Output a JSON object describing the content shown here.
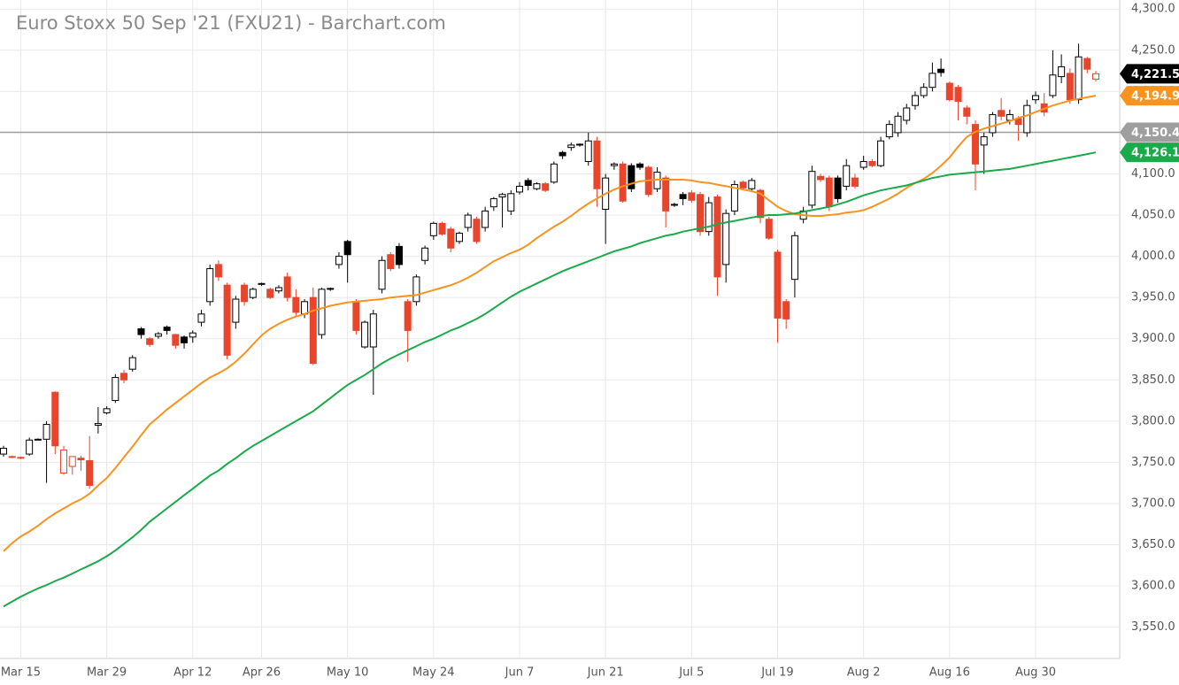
{
  "chart_data": {
    "type": "candlestick",
    "title": "Euro Stoxx 50 Sep '21 (FXU21) - Barchart.com",
    "categories": [
      null,
      null,
      "Mar 15",
      null,
      null,
      null,
      null,
      null,
      null,
      null,
      null,
      null,
      "Mar 29",
      null,
      null,
      null,
      null,
      null,
      null,
      null,
      null,
      null,
      "Apr 12",
      null,
      null,
      null,
      null,
      null,
      null,
      null,
      "Apr 26",
      null,
      null,
      null,
      null,
      null,
      null,
      null,
      null,
      null,
      "May 10",
      null,
      null,
      null,
      null,
      null,
      null,
      null,
      null,
      null,
      "May 24",
      null,
      null,
      null,
      null,
      null,
      null,
      null,
      null,
      null,
      "Jun 7",
      null,
      null,
      null,
      null,
      null,
      null,
      null,
      null,
      null,
      "Jun 21",
      null,
      null,
      null,
      null,
      null,
      null,
      null,
      null,
      null,
      "Jul 5",
      null,
      null,
      null,
      null,
      null,
      null,
      null,
      null,
      null,
      "Jul 19",
      null,
      null,
      null,
      null,
      null,
      null,
      null,
      null,
      null,
      "Aug 2",
      null,
      null,
      null,
      null,
      null,
      null,
      null,
      null,
      null,
      "Aug 16",
      null,
      null,
      null,
      null,
      null,
      null,
      null,
      null,
      null,
      "Aug 30",
      null,
      null,
      null,
      null,
      null,
      null,
      null
    ],
    "candles": {
      "up_color": "#000000",
      "down_color": "#e8452c",
      "last_label": "4,221.5",
      "open": [
        3760,
        3757,
        3756,
        3760,
        3778,
        3778,
        3835,
        3737,
        3745,
        3755,
        3752,
        3795,
        3810,
        3825,
        3858,
        3863,
        3912,
        3900,
        3903,
        3914,
        3905,
        3902,
        3902,
        3920,
        3945,
        3990,
        3965,
        3920,
        3965,
        3950,
        3966,
        3960,
        3958,
        3975,
        3950,
        3930,
        3950,
        3905,
        3960,
        3990,
        4018,
        3945,
        3890,
        3890,
        3960,
        4002,
        4012,
        3945,
        3945,
        3995,
        4025,
        4040,
        4033,
        4018,
        4035,
        4045,
        4035,
        4060,
        4072,
        4055,
        4078,
        4092,
        4082,
        4088,
        4090,
        4126,
        4132,
        4135,
        4115,
        4140,
        4057,
        4110,
        4112,
        4110,
        4112,
        4108,
        4082,
        4095,
        4062,
        4075,
        4077,
        4075,
        4030,
        4072,
        3990,
        4055,
        4090,
        4082,
        4080,
        4045,
        4005,
        3945,
        3972,
        4045,
        4062,
        4097,
        4095,
        4095,
        4085,
        4095,
        4108,
        4115,
        4110,
        4145,
        4150,
        4165,
        4183,
        4195,
        4205,
        4227,
        4210,
        4205,
        4180,
        4160,
        4135,
        4150,
        4177,
        4165,
        4167,
        4150,
        4190,
        4185,
        4195,
        4218,
        4222,
        4190,
        4240,
        4215
      ],
      "high": [
        3770,
        3758,
        3757,
        3780,
        3779,
        3800,
        3836,
        3770,
        3757,
        3758,
        3782,
        3817,
        3818,
        3857,
        3862,
        3880,
        3914,
        3902,
        3908,
        3916,
        3906,
        3904,
        3910,
        3935,
        3990,
        3995,
        3968,
        3952,
        3968,
        3962,
        3968,
        3962,
        3965,
        3980,
        3960,
        3948,
        3962,
        3962,
        3962,
        4005,
        4020,
        3948,
        3922,
        3935,
        4000,
        4005,
        4016,
        3948,
        3978,
        4013,
        4042,
        4042,
        4036,
        4030,
        4053,
        4048,
        4060,
        4072,
        4077,
        4080,
        4090,
        4095,
        4090,
        4090,
        4115,
        4128,
        4138,
        4137,
        4150,
        4145,
        4100,
        4114,
        4115,
        4113,
        4114,
        4110,
        4108,
        4098,
        4065,
        4078,
        4080,
        4078,
        4072,
        4075,
        4057,
        4092,
        4092,
        4095,
        4082,
        4048,
        4008,
        3948,
        4030,
        4060,
        4110,
        4100,
        4098,
        4098,
        4118,
        4100,
        4122,
        4118,
        4145,
        4165,
        4175,
        4185,
        4200,
        4210,
        4235,
        4240,
        4212,
        4208,
        4183,
        4165,
        4150,
        4175,
        4192,
        4178,
        4170,
        4190,
        4200,
        4198,
        4250,
        4245,
        4228,
        4258,
        4242,
        4225
      ],
      "low": [
        3757,
        3755,
        3754,
        3758,
        3777,
        3725,
        3760,
        3735,
        3735,
        3740,
        3718,
        3785,
        3808,
        3822,
        3846,
        3860,
        3900,
        3890,
        3900,
        3905,
        3888,
        3888,
        3895,
        3915,
        3940,
        3970,
        3875,
        3912,
        3940,
        3948,
        3964,
        3948,
        3955,
        3945,
        3928,
        3925,
        3868,
        3900,
        3958,
        3985,
        3968,
        3905,
        3888,
        3832,
        3955,
        3982,
        3985,
        3872,
        3940,
        3990,
        4020,
        4025,
        4005,
        4015,
        4030,
        4015,
        4030,
        4055,
        4035,
        4050,
        4075,
        4080,
        4080,
        4078,
        4088,
        4118,
        4128,
        4133,
        4110,
        4060,
        4015,
        4105,
        4065,
        4078,
        4105,
        4072,
        4078,
        4035,
        4060,
        4062,
        4065,
        4025,
        4025,
        3952,
        3968,
        4050,
        4080,
        4078,
        4040,
        4020,
        3895,
        3912,
        3950,
        4040,
        4058,
        4090,
        4055,
        4065,
        4080,
        4082,
        4105,
        4108,
        4108,
        4142,
        4145,
        4160,
        4178,
        4192,
        4200,
        4218,
        4188,
        4165,
        4160,
        4080,
        4100,
        4145,
        4165,
        4160,
        4140,
        4145,
        4185,
        4170,
        4192,
        4210,
        4185,
        4185,
        4222,
        4212
      ],
      "close": [
        3767,
        3756,
        3755,
        3777,
        3778,
        3796,
        3770,
        3765,
        3757,
        3753,
        3722,
        3797,
        3815,
        3853,
        3850,
        3877,
        3905,
        3893,
        3906,
        3910,
        3892,
        3895,
        3907,
        3930,
        3985,
        3975,
        3880,
        3948,
        3945,
        3960,
        3967,
        3950,
        3962,
        3950,
        3932,
        3945,
        3870,
        3960,
        3961,
        4000,
        4002,
        3910,
        3920,
        3930,
        3995,
        3985,
        3990,
        3910,
        3975,
        4010,
        4040,
        4027,
        4010,
        4028,
        4050,
        4018,
        4055,
        4070,
        4075,
        4076,
        4085,
        4086,
        4088,
        4080,
        4112,
        4122,
        4135,
        4136,
        4140,
        4082,
        4095,
        4112,
        4067,
        4082,
        4108,
        4075,
        4102,
        4055,
        4063,
        4070,
        4068,
        4030,
        4065,
        3975,
        4052,
        4087,
        4083,
        4092,
        4047,
        4022,
        3925,
        3924,
        4025,
        4055,
        4103,
        4093,
        4060,
        4070,
        4110,
        4085,
        4115,
        4110,
        4140,
        4160,
        4170,
        4180,
        4195,
        4205,
        4222,
        4223,
        4190,
        4188,
        4170,
        4112,
        4145,
        4172,
        4170,
        4172,
        4160,
        4183,
        4195,
        4175,
        4220,
        4230,
        4190,
        4242,
        4227,
        4221.5
      ]
    },
    "series": [
      {
        "color": "#f7931e",
        "last_label": "4,194.9",
        "values": [
          3642,
          3652,
          3660,
          3666,
          3673,
          3681,
          3688,
          3694,
          3700,
          3705,
          3712,
          3722,
          3731,
          3743,
          3756,
          3769,
          3783,
          3796,
          3805,
          3814,
          3822,
          3830,
          3838,
          3846,
          3853,
          3858,
          3864,
          3872,
          3882,
          3893,
          3904,
          3912,
          3918,
          3923,
          3927,
          3930,
          3934,
          3937,
          3940,
          3942,
          3944,
          3945,
          3946,
          3947,
          3948,
          3950,
          3951,
          3952,
          3953,
          3956,
          3959,
          3962,
          3965,
          3969,
          3974,
          3980,
          3987,
          3994,
          3999,
          4004,
          4008,
          4014,
          4022,
          4029,
          4036,
          4042,
          4049,
          4057,
          4064,
          4070,
          4076,
          4081,
          4085,
          4088,
          4091,
          4092,
          4093,
          4093,
          4093,
          4093,
          4092,
          4090,
          4089,
          4087,
          4085,
          4083,
          4081,
          4079,
          4076,
          4068,
          4060,
          4055,
          4051,
          4050,
          4049,
          4049,
          4050,
          4051,
          4053,
          4054,
          4056,
          4060,
          4065,
          4070,
          4076,
          4083,
          4089,
          4094,
          4101,
          4110,
          4120,
          4133,
          4145,
          4151,
          4155,
          4158,
          4161,
          4164,
          4168,
          4171,
          4175,
          4179,
          4183,
          4186,
          4189,
          4191,
          4193,
          4194.9
        ]
      },
      {
        "color": "#1aaa4a",
        "last_label": "4,126.1",
        "values": [
          3575,
          3581,
          3587,
          3592,
          3597,
          3601,
          3606,
          3610,
          3615,
          3620,
          3625,
          3630,
          3636,
          3643,
          3651,
          3659,
          3668,
          3678,
          3686,
          3694,
          3702,
          3710,
          3718,
          3726,
          3734,
          3740,
          3748,
          3755,
          3763,
          3770,
          3776,
          3782,
          3788,
          3794,
          3800,
          3806,
          3812,
          3820,
          3828,
          3836,
          3844,
          3850,
          3856,
          3863,
          3870,
          3876,
          3881,
          3886,
          3891,
          3896,
          3900,
          3905,
          3910,
          3914,
          3919,
          3924,
          3930,
          3937,
          3944,
          3951,
          3957,
          3962,
          3967,
          3972,
          3977,
          3982,
          3986,
          3990,
          3994,
          3998,
          4002,
          4006,
          4009,
          4012,
          4016,
          4019,
          4022,
          4025,
          4027,
          4030,
          4032,
          4034,
          4036,
          4039,
          4041,
          4043,
          4045,
          4047,
          4049,
          4050,
          4050,
          4051,
          4052,
          4054,
          4056,
          4058,
          4060,
          4063,
          4066,
          4070,
          4074,
          4077,
          4080,
          4082,
          4084,
          4086,
          4089,
          4092,
          4095,
          4097,
          4099,
          4100,
          4101,
          4102,
          4103,
          4104,
          4105,
          4106,
          4108,
          4110,
          4112,
          4114,
          4116,
          4118,
          4120,
          4122,
          4124,
          4126.1
        ]
      }
    ],
    "reference_line": {
      "value": 4150.4,
      "label": "4,150.4",
      "color": "#9e9e9e"
    },
    "ylim": [
      3512,
      4311
    ],
    "yticks": [
      {
        "value": 3550,
        "label": "3,550.0"
      },
      {
        "value": 3600,
        "label": "3,600.0"
      },
      {
        "value": 3650,
        "label": "3,650.0"
      },
      {
        "value": 3700,
        "label": "3,700.0"
      },
      {
        "value": 3750,
        "label": "3,750.0"
      },
      {
        "value": 3800,
        "label": "3,800.0"
      },
      {
        "value": 3850,
        "label": "3,850.0"
      },
      {
        "value": 3900,
        "label": "3,900.0"
      },
      {
        "value": 3950,
        "label": "3,950.0"
      },
      {
        "value": 4000,
        "label": "4,000.0"
      },
      {
        "value": 4050,
        "label": "4,050.0"
      },
      {
        "value": 4100,
        "label": "4,100.0"
      },
      {
        "value": 4150,
        "label": "4,150.0"
      },
      {
        "value": 4200,
        "label": "4,200.0"
      },
      {
        "value": 4250,
        "label": "4,250.0"
      },
      {
        "value": 4300,
        "label": "4,300.0"
      }
    ],
    "grid": true
  }
}
